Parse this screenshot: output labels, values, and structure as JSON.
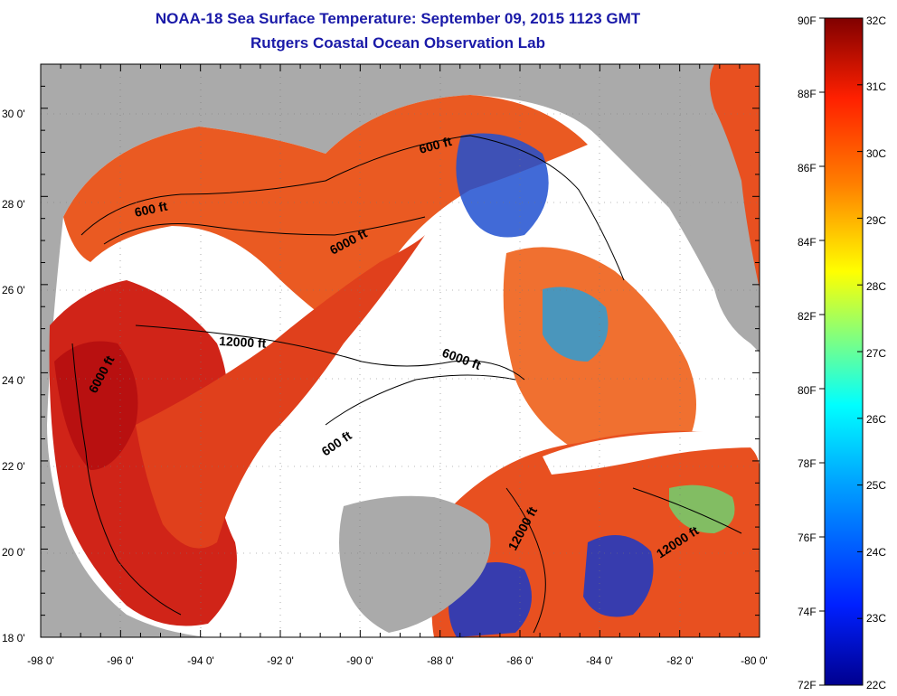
{
  "header": {
    "title": "NOAA-18 Sea Surface Temperature:  September 09, 2015 1123 GMT",
    "subtitle": "Rutgers Coastal Ocean Observation Lab"
  },
  "axes": {
    "x_ticks": [
      "-98 0'",
      "-96 0'",
      "-94 0'",
      "-92 0'",
      "-90 0'",
      "-88 0'",
      "-86 0'",
      "-84 0'",
      "-82 0'",
      "-80 0'"
    ],
    "y_ticks": [
      "30 0'",
      "28 0'",
      "26 0'",
      "24 0'",
      "22 0'",
      "20 0'",
      "18 0'"
    ]
  },
  "contour_labels": [
    "600 ft",
    "600 ft",
    "6000 ft",
    "12000 ft",
    "6000 ft",
    "6000 ft",
    "600 ft",
    "12000 ft",
    "12000 ft"
  ],
  "colorbar": {
    "fahrenheit": [
      "90F",
      "88F",
      "86F",
      "84F",
      "82F",
      "80F",
      "78F",
      "76F",
      "74F",
      "72F"
    ],
    "celsius": [
      "32C",
      "31C",
      "30C",
      "29C",
      "28C",
      "27C",
      "26C",
      "25C",
      "24C",
      "23C",
      "22C"
    ]
  },
  "colors": {
    "land": "#aaaaaa",
    "no_data": "#ffffff",
    "title": "#1a1aa8",
    "warm": "#e8401a",
    "hot": "#c81818",
    "cool": "#1030c0"
  }
}
